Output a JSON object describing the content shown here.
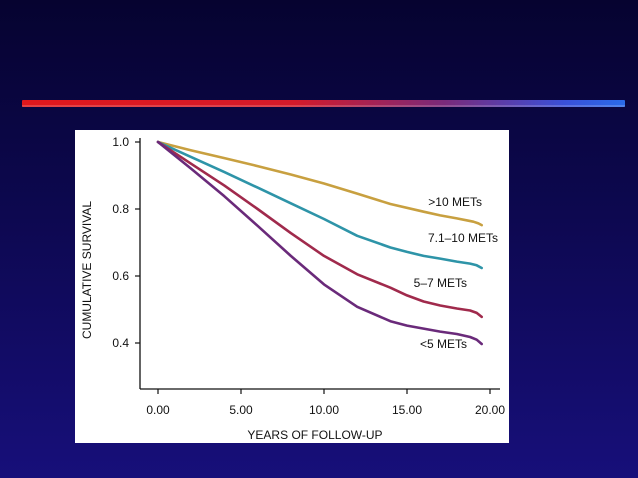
{
  "colors": {
    "background_top": "#060330",
    "background_bottom": "#170f7a",
    "divider_red": "#e0181c",
    "divider_blue": "#2a6ae8"
  },
  "chart_data": {
    "type": "line",
    "title": "",
    "xlabel": "YEARS OF FOLLOW-UP",
    "ylabel": "CUMULATIVE SURVIVAL",
    "xlim": [
      0,
      20
    ],
    "ylim": [
      0.27,
      1.0
    ],
    "x_ticks": [
      "0.00",
      "5.00",
      "10.00",
      "15.00",
      "20.00"
    ],
    "y_ticks": [
      "1.0",
      "0.8",
      "0.6",
      "0.4"
    ],
    "x_tick_values": [
      0,
      5,
      10,
      15,
      20
    ],
    "y_tick_values": [
      1.0,
      0.8,
      0.6,
      0.4
    ],
    "grid": false,
    "series": [
      {
        "name": ">10 METs",
        "label": ">10 METs",
        "color": "#c8a040",
        "points": [
          [
            0,
            1.0
          ],
          [
            2,
            0.975
          ],
          [
            4,
            0.952
          ],
          [
            6,
            0.928
          ],
          [
            8,
            0.903
          ],
          [
            10,
            0.876
          ],
          [
            12,
            0.846
          ],
          [
            14,
            0.815
          ],
          [
            16,
            0.792
          ],
          [
            17,
            0.781
          ],
          [
            18,
            0.772
          ],
          [
            18.7,
            0.765
          ],
          [
            19,
            0.762
          ],
          [
            19.3,
            0.757
          ],
          [
            19.5,
            0.752
          ]
        ]
      },
      {
        "name": "7.1–10 METs",
        "label": "7.1–10 METs",
        "color": "#2e94a8",
        "points": [
          [
            0,
            1.0
          ],
          [
            2,
            0.955
          ],
          [
            4,
            0.91
          ],
          [
            6,
            0.864
          ],
          [
            8,
            0.817
          ],
          [
            10,
            0.77
          ],
          [
            12,
            0.72
          ],
          [
            14,
            0.685
          ],
          [
            15,
            0.672
          ],
          [
            16,
            0.66
          ],
          [
            17,
            0.652
          ],
          [
            18,
            0.643
          ],
          [
            18.8,
            0.637
          ],
          [
            19.2,
            0.632
          ],
          [
            19.5,
            0.624
          ]
        ]
      },
      {
        "name": "5–7 METs",
        "label": "5–7 METs",
        "color": "#a02a4c",
        "points": [
          [
            0,
            1.0
          ],
          [
            2,
            0.935
          ],
          [
            4,
            0.87
          ],
          [
            6,
            0.8
          ],
          [
            8,
            0.728
          ],
          [
            10,
            0.66
          ],
          [
            12,
            0.605
          ],
          [
            14,
            0.565
          ],
          [
            15,
            0.542
          ],
          [
            16,
            0.524
          ],
          [
            17,
            0.512
          ],
          [
            18,
            0.503
          ],
          [
            18.8,
            0.497
          ],
          [
            19.2,
            0.49
          ],
          [
            19.5,
            0.478
          ]
        ]
      },
      {
        "name": "<5 METs",
        "label": "<5 METs",
        "color": "#6a2a7a",
        "points": [
          [
            0,
            1.0
          ],
          [
            2,
            0.92
          ],
          [
            4,
            0.838
          ],
          [
            6,
            0.75
          ],
          [
            8,
            0.66
          ],
          [
            10,
            0.575
          ],
          [
            12,
            0.508
          ],
          [
            14,
            0.465
          ],
          [
            15,
            0.452
          ],
          [
            16,
            0.443
          ],
          [
            17,
            0.434
          ],
          [
            18,
            0.427
          ],
          [
            18.8,
            0.418
          ],
          [
            19.2,
            0.41
          ],
          [
            19.5,
            0.397
          ]
        ]
      }
    ]
  }
}
